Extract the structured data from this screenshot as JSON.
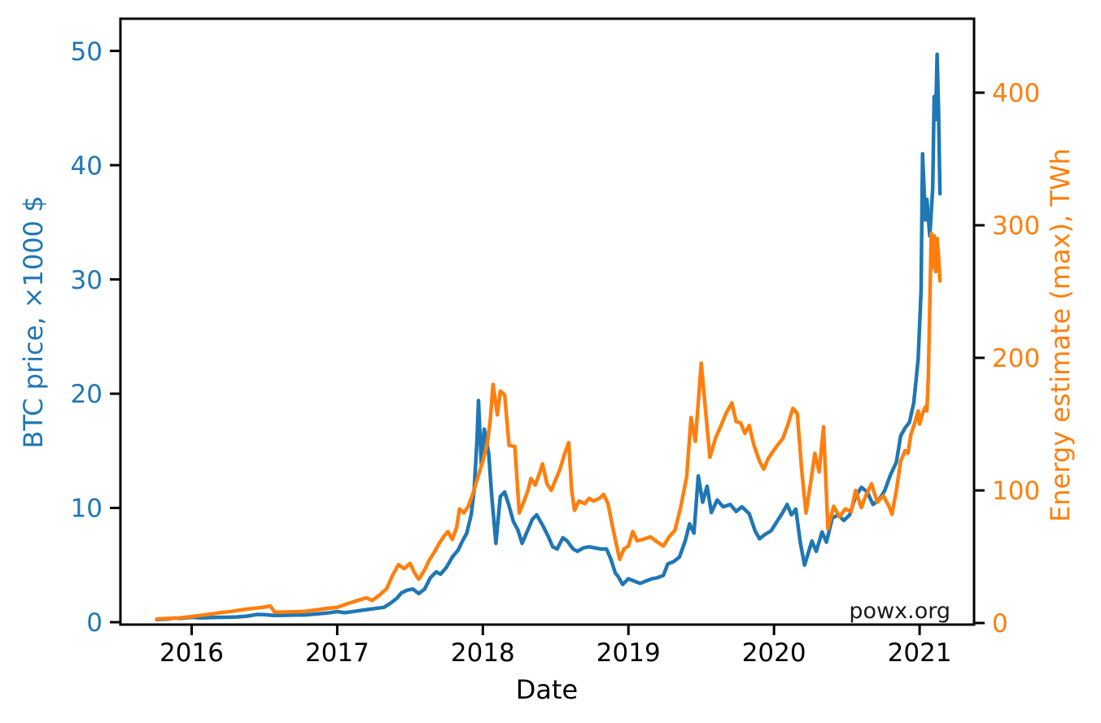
{
  "colors": {
    "btc_blue": "#1f77b4",
    "energy_orange": "#ff7f0e",
    "axis_black": "#000000",
    "watermark_gray": "#1a1a1a",
    "background": "#ffffff"
  },
  "chart_data": {
    "type": "line",
    "title": "",
    "xlabel": "Date",
    "ylabel_left": "BTC price, ×1000 $",
    "ylabel_right": "Energy estimate (max), TWh",
    "watermark": "powx.org",
    "grid": false,
    "legend": "none",
    "x_range": [
      2015.511,
      2021.374
    ],
    "x_ticks": [
      2016,
      2017,
      2018,
      2019,
      2020,
      2021
    ],
    "x_tick_labels": [
      "2016",
      "2017",
      "2018",
      "2019",
      "2020",
      "2021"
    ],
    "left_axis": {
      "label": "BTC price, ×1000 $",
      "color": "#1f77b4",
      "range": [
        -0.21,
        52.82
      ],
      "ticks": [
        0,
        10,
        20,
        30,
        40,
        50
      ],
      "tick_labels": [
        "0",
        "10",
        "20",
        "30",
        "40",
        "50"
      ]
    },
    "right_axis": {
      "label": "Energy estimate (max), TWh",
      "color": "#ff7f0e",
      "range": [
        -1.2,
        455.8
      ],
      "ticks": [
        0,
        100,
        200,
        300,
        400
      ],
      "tick_labels": [
        "0",
        "100",
        "200",
        "300",
        "400"
      ]
    },
    "series": [
      {
        "name": "BTC price, ×1000 $",
        "axis": "left",
        "color": "#1f77b4",
        "points": [
          [
            2015.76,
            0.23
          ],
          [
            2015.83,
            0.27
          ],
          [
            2015.88,
            0.36
          ],
          [
            2015.92,
            0.33
          ],
          [
            2016.0,
            0.43
          ],
          [
            2016.07,
            0.38
          ],
          [
            2016.15,
            0.41
          ],
          [
            2016.23,
            0.43
          ],
          [
            2016.31,
            0.46
          ],
          [
            2016.38,
            0.53
          ],
          [
            2016.45,
            0.68
          ],
          [
            2016.5,
            0.66
          ],
          [
            2016.56,
            0.59
          ],
          [
            2016.63,
            0.6
          ],
          [
            2016.71,
            0.62
          ],
          [
            2016.78,
            0.64
          ],
          [
            2016.86,
            0.72
          ],
          [
            2016.93,
            0.8
          ],
          [
            2017.0,
            0.93
          ],
          [
            2017.05,
            0.83
          ],
          [
            2017.12,
            0.95
          ],
          [
            2017.19,
            1.08
          ],
          [
            2017.26,
            1.2
          ],
          [
            2017.32,
            1.3
          ],
          [
            2017.37,
            1.7
          ],
          [
            2017.41,
            2.1
          ],
          [
            2017.44,
            2.55
          ],
          [
            2017.48,
            2.8
          ],
          [
            2017.52,
            2.9
          ],
          [
            2017.56,
            2.5
          ],
          [
            2017.6,
            2.9
          ],
          [
            2017.64,
            3.9
          ],
          [
            2017.68,
            4.4
          ],
          [
            2017.71,
            4.2
          ],
          [
            2017.75,
            4.8
          ],
          [
            2017.79,
            5.7
          ],
          [
            2017.83,
            6.3
          ],
          [
            2017.86,
            7.1
          ],
          [
            2017.89,
            7.8
          ],
          [
            2017.92,
            9.4
          ],
          [
            2017.94,
            11.5
          ],
          [
            2017.96,
            16.0
          ],
          [
            2017.97,
            19.4
          ],
          [
            2017.99,
            13.8
          ],
          [
            2018.01,
            16.9
          ],
          [
            2018.04,
            14.8
          ],
          [
            2018.06,
            11.2
          ],
          [
            2018.09,
            6.9
          ],
          [
            2018.12,
            11.0
          ],
          [
            2018.15,
            11.4
          ],
          [
            2018.18,
            10.2
          ],
          [
            2018.21,
            8.8
          ],
          [
            2018.24,
            8.1
          ],
          [
            2018.27,
            6.9
          ],
          [
            2018.31,
            8.1
          ],
          [
            2018.34,
            9.0
          ],
          [
            2018.37,
            9.4
          ],
          [
            2018.41,
            8.5
          ],
          [
            2018.45,
            7.5
          ],
          [
            2018.48,
            6.6
          ],
          [
            2018.51,
            6.4
          ],
          [
            2018.55,
            7.4
          ],
          [
            2018.58,
            7.1
          ],
          [
            2018.62,
            6.4
          ],
          [
            2018.65,
            6.2
          ],
          [
            2018.69,
            6.5
          ],
          [
            2018.73,
            6.6
          ],
          [
            2018.77,
            6.5
          ],
          [
            2018.81,
            6.4
          ],
          [
            2018.85,
            6.4
          ],
          [
            2018.88,
            5.5
          ],
          [
            2018.91,
            4.3
          ],
          [
            2018.93,
            4.0
          ],
          [
            2018.96,
            3.3
          ],
          [
            2019.0,
            3.8
          ],
          [
            2019.04,
            3.6
          ],
          [
            2019.08,
            3.4
          ],
          [
            2019.12,
            3.6
          ],
          [
            2019.16,
            3.8
          ],
          [
            2019.2,
            3.9
          ],
          [
            2019.24,
            4.1
          ],
          [
            2019.27,
            5.1
          ],
          [
            2019.31,
            5.3
          ],
          [
            2019.35,
            5.7
          ],
          [
            2019.39,
            7.1
          ],
          [
            2019.42,
            8.6
          ],
          [
            2019.45,
            7.8
          ],
          [
            2019.48,
            12.8
          ],
          [
            2019.51,
            10.5
          ],
          [
            2019.54,
            11.9
          ],
          [
            2019.57,
            9.6
          ],
          [
            2019.61,
            10.7
          ],
          [
            2019.65,
            10.1
          ],
          [
            2019.7,
            10.3
          ],
          [
            2019.74,
            9.7
          ],
          [
            2019.78,
            10.1
          ],
          [
            2019.83,
            9.5
          ],
          [
            2019.87,
            8.0
          ],
          [
            2019.9,
            7.3
          ],
          [
            2019.94,
            7.7
          ],
          [
            2019.98,
            8.0
          ],
          [
            2020.02,
            8.8
          ],
          [
            2020.06,
            9.6
          ],
          [
            2020.09,
            10.3
          ],
          [
            2020.12,
            9.4
          ],
          [
            2020.15,
            9.9
          ],
          [
            2020.18,
            7.0
          ],
          [
            2020.21,
            5.0
          ],
          [
            2020.26,
            7.1
          ],
          [
            2020.29,
            6.2
          ],
          [
            2020.33,
            7.9
          ],
          [
            2020.36,
            7.0
          ],
          [
            2020.4,
            9.1
          ],
          [
            2020.44,
            9.4
          ],
          [
            2020.48,
            8.9
          ],
          [
            2020.52,
            9.4
          ],
          [
            2020.56,
            11.0
          ],
          [
            2020.6,
            11.8
          ],
          [
            2020.64,
            11.4
          ],
          [
            2020.68,
            10.3
          ],
          [
            2020.72,
            10.7
          ],
          [
            2020.76,
            11.5
          ],
          [
            2020.8,
            12.9
          ],
          [
            2020.84,
            14.0
          ],
          [
            2020.87,
            16.3
          ],
          [
            2020.9,
            17.0
          ],
          [
            2020.93,
            17.5
          ],
          [
            2020.96,
            19.2
          ],
          [
            2020.99,
            23.0
          ],
          [
            2021.01,
            29.0
          ],
          [
            2021.02,
            41.0
          ],
          [
            2021.04,
            35.2
          ],
          [
            2021.05,
            37.0
          ],
          [
            2021.07,
            33.8
          ],
          [
            2021.09,
            38.0
          ],
          [
            2021.1,
            46.0
          ],
          [
            2021.11,
            44.0
          ],
          [
            2021.12,
            49.7
          ],
          [
            2021.13,
            45.0
          ],
          [
            2021.14,
            37.5
          ]
        ]
      },
      {
        "name": "Energy estimate (max), TWh",
        "axis": "right",
        "color": "#ff7f0e",
        "points": [
          [
            2015.76,
            3.0
          ],
          [
            2015.83,
            3.4
          ],
          [
            2015.92,
            3.9
          ],
          [
            2016.0,
            4.9
          ],
          [
            2016.1,
            6.3
          ],
          [
            2016.2,
            7.8
          ],
          [
            2016.28,
            8.8
          ],
          [
            2016.36,
            10.2
          ],
          [
            2016.44,
            11.2
          ],
          [
            2016.5,
            12.0
          ],
          [
            2016.54,
            12.9
          ],
          [
            2016.57,
            8.2
          ],
          [
            2016.64,
            8.3
          ],
          [
            2016.71,
            8.5
          ],
          [
            2016.78,
            8.8
          ],
          [
            2016.86,
            9.9
          ],
          [
            2016.93,
            11.0
          ],
          [
            2017.0,
            11.8
          ],
          [
            2017.07,
            14.5
          ],
          [
            2017.14,
            17.0
          ],
          [
            2017.2,
            19.0
          ],
          [
            2017.24,
            17.0
          ],
          [
            2017.29,
            21.0
          ],
          [
            2017.34,
            26.0
          ],
          [
            2017.38,
            36.0
          ],
          [
            2017.42,
            44.0
          ],
          [
            2017.46,
            41.0
          ],
          [
            2017.5,
            45.0
          ],
          [
            2017.53,
            38.0
          ],
          [
            2017.56,
            33.0
          ],
          [
            2017.6,
            40.0
          ],
          [
            2017.63,
            47.0
          ],
          [
            2017.67,
            54.0
          ],
          [
            2017.7,
            60.0
          ],
          [
            2017.73,
            65.0
          ],
          [
            2017.76,
            69.0
          ],
          [
            2017.79,
            63.0
          ],
          [
            2017.82,
            72.0
          ],
          [
            2017.84,
            86.0
          ],
          [
            2017.87,
            83.0
          ],
          [
            2017.9,
            88.0
          ],
          [
            2017.93,
            97.0
          ],
          [
            2017.96,
            108.0
          ],
          [
            2018.0,
            122.0
          ],
          [
            2018.03,
            135.0
          ],
          [
            2018.05,
            152.0
          ],
          [
            2018.07,
            180.0
          ],
          [
            2018.1,
            157.0
          ],
          [
            2018.12,
            175.0
          ],
          [
            2018.15,
            172.0
          ],
          [
            2018.18,
            134.0
          ],
          [
            2018.22,
            133.0
          ],
          [
            2018.25,
            83.0
          ],
          [
            2018.28,
            91.0
          ],
          [
            2018.31,
            100.0
          ],
          [
            2018.33,
            109.0
          ],
          [
            2018.36,
            104.0
          ],
          [
            2018.39,
            113.0
          ],
          [
            2018.41,
            120.0
          ],
          [
            2018.44,
            105.0
          ],
          [
            2018.47,
            100.0
          ],
          [
            2018.5,
            108.0
          ],
          [
            2018.53,
            116.0
          ],
          [
            2018.56,
            127.0
          ],
          [
            2018.59,
            136.0
          ],
          [
            2018.61,
            100.0
          ],
          [
            2018.63,
            85.0
          ],
          [
            2018.66,
            92.0
          ],
          [
            2018.7,
            90.0
          ],
          [
            2018.73,
            94.0
          ],
          [
            2018.76,
            92.0
          ],
          [
            2018.8,
            94.0
          ],
          [
            2018.83,
            97.0
          ],
          [
            2018.86,
            90.0
          ],
          [
            2018.89,
            73.0
          ],
          [
            2018.92,
            58.0
          ],
          [
            2018.94,
            48.0
          ],
          [
            2018.97,
            56.0
          ],
          [
            2019.0,
            58.0
          ],
          [
            2019.03,
            69.0
          ],
          [
            2019.06,
            62.0
          ],
          [
            2019.1,
            63.0
          ],
          [
            2019.15,
            65.0
          ],
          [
            2019.2,
            61.0
          ],
          [
            2019.24,
            58.0
          ],
          [
            2019.28,
            65.0
          ],
          [
            2019.32,
            70.0
          ],
          [
            2019.36,
            88.0
          ],
          [
            2019.4,
            110.0
          ],
          [
            2019.43,
            155.0
          ],
          [
            2019.46,
            137.0
          ],
          [
            2019.5,
            196.0
          ],
          [
            2019.53,
            160.0
          ],
          [
            2019.56,
            125.0
          ],
          [
            2019.6,
            140.0
          ],
          [
            2019.64,
            150.0
          ],
          [
            2019.67,
            158.0
          ],
          [
            2019.71,
            166.0
          ],
          [
            2019.74,
            152.0
          ],
          [
            2019.77,
            151.0
          ],
          [
            2019.8,
            143.0
          ],
          [
            2019.83,
            149.0
          ],
          [
            2019.86,
            135.0
          ],
          [
            2019.9,
            122.0
          ],
          [
            2019.93,
            116.0
          ],
          [
            2019.96,
            124.0
          ],
          [
            2019.99,
            129.0
          ],
          [
            2020.03,
            135.0
          ],
          [
            2020.06,
            139.0
          ],
          [
            2020.09,
            148.0
          ],
          [
            2020.13,
            162.0
          ],
          [
            2020.16,
            158.0
          ],
          [
            2020.19,
            115.0
          ],
          [
            2020.22,
            83.0
          ],
          [
            2020.26,
            112.0
          ],
          [
            2020.28,
            128.0
          ],
          [
            2020.31,
            114.0
          ],
          [
            2020.34,
            148.0
          ],
          [
            2020.37,
            71.0
          ],
          [
            2020.41,
            88.0
          ],
          [
            2020.45,
            80.0
          ],
          [
            2020.49,
            86.0
          ],
          [
            2020.53,
            84.0
          ],
          [
            2020.56,
            100.0
          ],
          [
            2020.6,
            87.0
          ],
          [
            2020.63,
            96.0
          ],
          [
            2020.67,
            105.0
          ],
          [
            2020.71,
            91.0
          ],
          [
            2020.75,
            96.0
          ],
          [
            2020.79,
            88.0
          ],
          [
            2020.81,
            82.0
          ],
          [
            2020.84,
            100.0
          ],
          [
            2020.87,
            122.0
          ],
          [
            2020.9,
            130.0
          ],
          [
            2020.92,
            128.0
          ],
          [
            2020.94,
            142.0
          ],
          [
            2020.97,
            152.0
          ],
          [
            2020.99,
            160.0
          ],
          [
            2021.0,
            150.0
          ],
          [
            2021.02,
            158.0
          ],
          [
            2021.04,
            163.0
          ],
          [
            2021.05,
            160.0
          ],
          [
            2021.06,
            185.0
          ],
          [
            2021.07,
            240.0
          ],
          [
            2021.08,
            294.0
          ],
          [
            2021.09,
            268.0
          ],
          [
            2021.1,
            292.0
          ],
          [
            2021.11,
            265.0
          ],
          [
            2021.12,
            290.0
          ],
          [
            2021.13,
            278.0
          ],
          [
            2021.14,
            258.0
          ]
        ]
      }
    ]
  }
}
